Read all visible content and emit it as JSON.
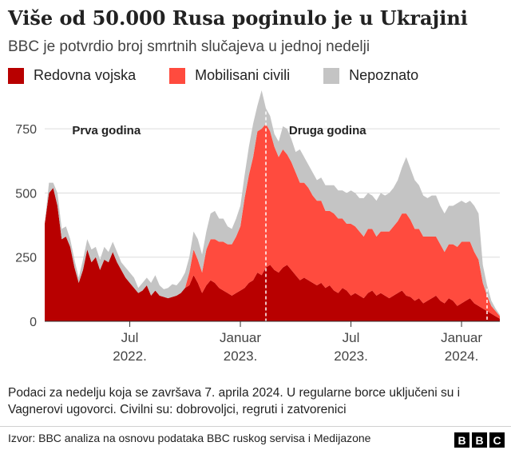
{
  "title": "Više od 50.000 Rusa poginulo je u Ukrajini",
  "subtitle": "BBC je potvrdio broj smrtnih slučajeva u jednoj nedelji",
  "legend": [
    {
      "label": "Redovna vojska",
      "color": "#b80000"
    },
    {
      "label": "Mobilisani civili",
      "color": "#ff4b3e"
    },
    {
      "label": "Nepoznato",
      "color": "#c4c4c4"
    }
  ],
  "footnote": "Podaci za nedelju koja se završava 7. aprila 2024. U regularne borce uključeni su i Vagnerovi ugovorci. Civilni su: dobrovoljci, regruti i zatvorenici",
  "source": "Izvor: BBC analiza na osnovu podataka BBC ruskog servisa i Medijazone",
  "logo_letters": [
    "B",
    "B",
    "C"
  ],
  "chart_data": {
    "type": "area",
    "stacked": true,
    "ylim": [
      0,
      900
    ],
    "yticks": [
      0,
      250,
      500,
      750
    ],
    "ytick_labels": [
      "0",
      "250",
      "500",
      "750"
    ],
    "xticks": [
      {
        "week": 20,
        "line1": "Jul",
        "line2": "2022."
      },
      {
        "week": 46,
        "line1": "Januar",
        "line2": "2023."
      },
      {
        "week": 72,
        "line1": "Jul",
        "line2": "2023."
      },
      {
        "week": 98,
        "line1": "Januar",
        "line2": "2024."
      }
    ],
    "annotations": [
      {
        "week": 14.5,
        "label": "Prva godina"
      },
      {
        "week": 66.5,
        "label": "Druga godina"
      }
    ],
    "dividers": [
      52,
      104
    ],
    "series": [
      {
        "name": "Redovna vojska",
        "color": "#b80000",
        "values": [
          380,
          500,
          520,
          450,
          320,
          330,
          290,
          210,
          150,
          200,
          280,
          230,
          250,
          200,
          240,
          230,
          270,
          230,
          200,
          170,
          150,
          130,
          110,
          120,
          140,
          100,
          120,
          100,
          95,
          90,
          95,
          100,
          110,
          130,
          140,
          180,
          150,
          110,
          140,
          160,
          150,
          130,
          120,
          110,
          100,
          110,
          120,
          130,
          150,
          160,
          190,
          180,
          210,
          220,
          200,
          190,
          210,
          220,
          200,
          180,
          160,
          170,
          160,
          150,
          140,
          150,
          130,
          140,
          120,
          110,
          130,
          120,
          100,
          110,
          100,
          90,
          110,
          120,
          100,
          110,
          100,
          90,
          100,
          110,
          120,
          100,
          95,
          80,
          90,
          70,
          80,
          90,
          100,
          80,
          70,
          90,
          80,
          60,
          70,
          80,
          90,
          70,
          60,
          50,
          40,
          30,
          20,
          10
        ]
      },
      {
        "name": "Mobilisani civili",
        "color": "#ff4b3e",
        "values": [
          0,
          0,
          0,
          0,
          0,
          0,
          0,
          0,
          0,
          0,
          0,
          0,
          0,
          0,
          0,
          0,
          0,
          0,
          0,
          0,
          0,
          0,
          0,
          0,
          0,
          0,
          0,
          0,
          0,
          0,
          0,
          0,
          0,
          0,
          50,
          100,
          90,
          80,
          140,
          160,
          170,
          180,
          190,
          190,
          200,
          220,
          250,
          350,
          420,
          480,
          550,
          570,
          560,
          520,
          480,
          450,
          460,
          430,
          420,
          400,
          380,
          370,
          360,
          340,
          330,
          320,
          300,
          290,
          300,
          290,
          270,
          260,
          280,
          260,
          250,
          240,
          250,
          240,
          230,
          240,
          250,
          260,
          270,
          280,
          300,
          320,
          300,
          280,
          270,
          260,
          250,
          240,
          230,
          220,
          200,
          210,
          220,
          230,
          240,
          230,
          220,
          200,
          180,
          100,
          60,
          30,
          20,
          10
        ]
      },
      {
        "name": "Nepoznato",
        "color": "#c4c4c4",
        "values": [
          0,
          40,
          20,
          50,
          40,
          40,
          30,
          30,
          20,
          40,
          40,
          50,
          40,
          40,
          50,
          40,
          40,
          40,
          30,
          40,
          40,
          40,
          20,
          30,
          30,
          50,
          60,
          40,
          30,
          40,
          50,
          40,
          50,
          60,
          60,
          70,
          80,
          70,
          70,
          100,
          110,
          90,
          90,
          70,
          60,
          70,
          80,
          90,
          110,
          130,
          100,
          150,
          60,
          60,
          50,
          60,
          90,
          100,
          90,
          80,
          130,
          100,
          90,
          90,
          80,
          90,
          100,
          100,
          110,
          110,
          110,
          120,
          130,
          130,
          130,
          150,
          140,
          130,
          140,
          150,
          140,
          150,
          150,
          160,
          180,
          220,
          200,
          190,
          170,
          160,
          150,
          160,
          160,
          150,
          150,
          150,
          150,
          170,
          160,
          150,
          160,
          180,
          180,
          70,
          40,
          20,
          10,
          5
        ]
      }
    ]
  }
}
